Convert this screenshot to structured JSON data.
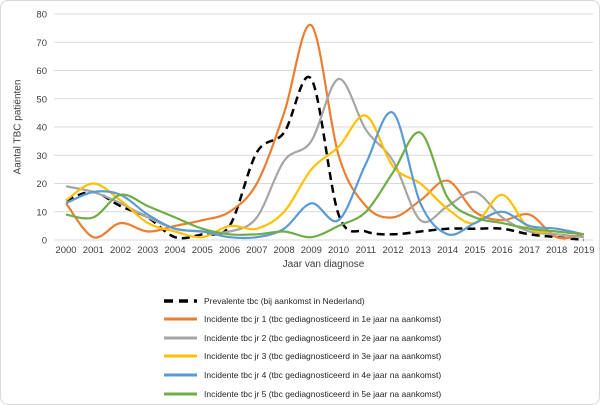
{
  "chart_data": {
    "type": "line",
    "title": "",
    "xlabel": "Jaar van diagnose",
    "ylabel": "Aantal TBC patiënten",
    "ylim": [
      0,
      80
    ],
    "yticks": [
      0,
      10,
      20,
      30,
      40,
      50,
      60,
      70,
      80
    ],
    "grid": true,
    "legend_position": "bottom",
    "smoothed_lines": true,
    "categories": [
      "2000",
      "2001",
      "2002",
      "2003",
      "2004",
      "2005",
      "2006",
      "2007",
      "2008",
      "2009",
      "2010",
      "2011",
      "2012",
      "2013",
      "2014",
      "2015",
      "2016",
      "2017",
      "2018",
      "2019"
    ],
    "series": [
      {
        "name": "Prevalente tbc (bij aankomst in Nederland)",
        "color": "#000000",
        "dashed": true,
        "values": [
          14,
          17,
          12,
          8,
          1,
          2,
          5,
          31,
          38,
          57,
          9,
          3,
          2,
          3,
          4,
          4,
          4,
          2,
          1,
          0
        ]
      },
      {
        "name": "Incidente tbc jr 1 (tbc gediagnosticeerd in 1e jaar na aankomst)",
        "color": "#ED7D31",
        "dashed": false,
        "values": [
          13,
          1,
          6,
          3,
          5,
          7,
          10,
          20,
          45,
          76,
          30,
          12,
          8,
          14,
          21,
          10,
          7,
          9,
          1,
          2
        ]
      },
      {
        "name": "Incidente tbc jr 2 (tbc gediagnosticeerd in 2e jaar na aankomst)",
        "color": "#A5A5A5",
        "dashed": false,
        "values": [
          19,
          17,
          13,
          8,
          4,
          3,
          3,
          8,
          28,
          35,
          57,
          39,
          28,
          7,
          12,
          17,
          8,
          3,
          2,
          1
        ]
      },
      {
        "name": "Incidente tbc jr 3 (tbc gediagnosticeerd in 3e jaar na aankomst)",
        "color": "#FFC000",
        "dashed": false,
        "values": [
          14,
          20,
          14,
          6,
          3,
          1,
          5,
          4,
          10,
          25,
          33,
          44,
          26,
          20,
          11,
          6,
          16,
          4,
          3,
          2
        ]
      },
      {
        "name": "Incidente tbc jr 4 (tbc gediagnosticeerd in 4e jaar na aankomst)",
        "color": "#5B9BD5",
        "dashed": false,
        "values": [
          13,
          17,
          16,
          9,
          4,
          3,
          1,
          1,
          4,
          13,
          7,
          27,
          45,
          13,
          2,
          6,
          10,
          5,
          4,
          2
        ]
      },
      {
        "name": "Incidente tbc jr 5 (tbc gediagnosticeerd in 5e jaar na aankomst)",
        "color": "#70AD47",
        "dashed": false,
        "values": [
          9,
          8,
          16,
          12,
          8,
          4,
          2,
          2,
          3,
          1,
          5,
          10,
          24,
          38,
          15,
          8,
          6,
          4,
          3,
          2
        ]
      }
    ],
    "style": {
      "gridline_color": "#D9D9D9",
      "tick_label_color": "#404040",
      "legend_text_color": "#262626"
    }
  }
}
